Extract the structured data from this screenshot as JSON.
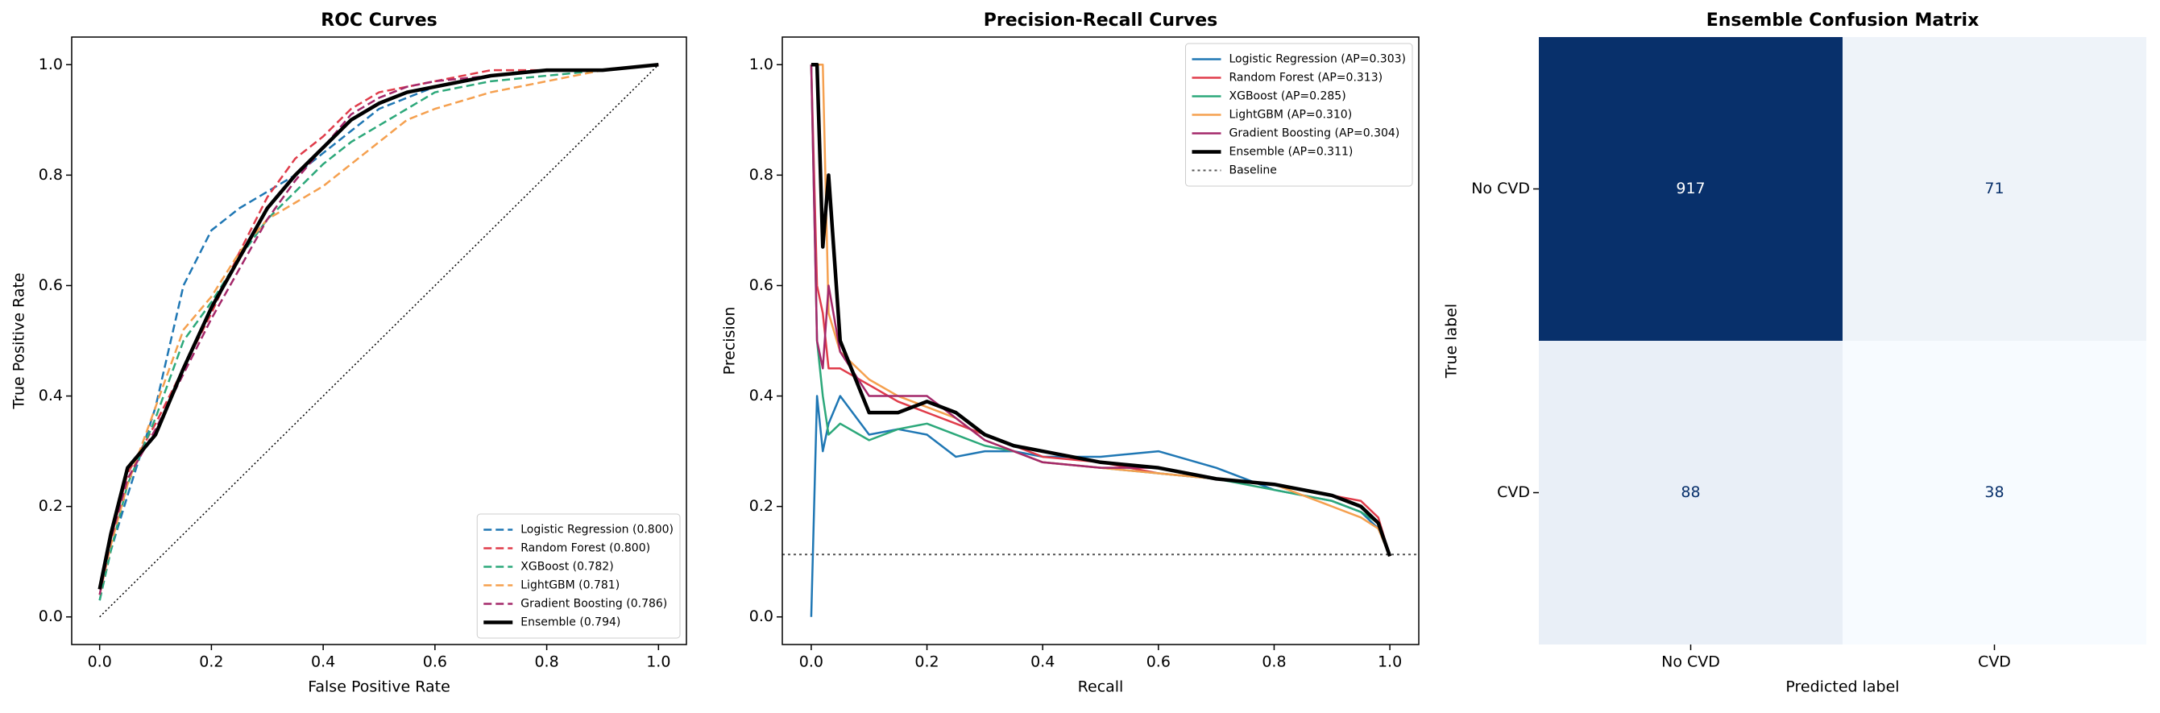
{
  "chart_data": [
    {
      "type": "line",
      "title": "ROC Curves",
      "xlabel": "False Positive Rate",
      "ylabel": "True Positive Rate",
      "x": [
        0,
        0.02,
        0.05,
        0.1,
        0.15,
        0.2,
        0.25,
        0.3,
        0.35,
        0.4,
        0.45,
        0.5,
        0.55,
        0.6,
        0.7,
        0.8,
        0.9,
        1.0
      ],
      "series": [
        {
          "name": "Logistic Regression (0.800)",
          "color": "#1f77b4",
          "linestyle": "dashed",
          "linewidth": 2.5,
          "values": [
            0.03,
            0.12,
            0.22,
            0.38,
            0.6,
            0.7,
            0.74,
            0.77,
            0.8,
            0.84,
            0.88,
            0.92,
            0.94,
            0.96,
            0.98,
            0.99,
            0.99,
            1.0
          ]
        },
        {
          "name": "Random Forest (0.800)",
          "color": "#e03c4a",
          "linestyle": "dashed",
          "linewidth": 2.5,
          "values": [
            0.05,
            0.14,
            0.26,
            0.35,
            0.45,
            0.55,
            0.66,
            0.76,
            0.83,
            0.87,
            0.92,
            0.95,
            0.96,
            0.97,
            0.99,
            0.99,
            0.99,
            1.0
          ]
        },
        {
          "name": "XGBoost (0.782)",
          "color": "#2ca87a",
          "linestyle": "dashed",
          "linewidth": 2.5,
          "values": [
            0.03,
            0.12,
            0.24,
            0.36,
            0.5,
            0.57,
            0.65,
            0.72,
            0.77,
            0.82,
            0.86,
            0.89,
            0.92,
            0.95,
            0.97,
            0.98,
            0.99,
            1.0
          ]
        },
        {
          "name": "LightGBM (0.781)",
          "color": "#f5a04f",
          "linestyle": "dashed",
          "linewidth": 2.5,
          "values": [
            0.04,
            0.13,
            0.24,
            0.38,
            0.52,
            0.58,
            0.66,
            0.72,
            0.75,
            0.78,
            0.82,
            0.86,
            0.9,
            0.92,
            0.95,
            0.97,
            0.99,
            1.0
          ]
        },
        {
          "name": "Gradient Boosting (0.786)",
          "color": "#a4286a",
          "linestyle": "dashed",
          "linewidth": 2.5,
          "values": [
            0.04,
            0.14,
            0.25,
            0.34,
            0.44,
            0.54,
            0.63,
            0.72,
            0.79,
            0.85,
            0.91,
            0.94,
            0.96,
            0.97,
            0.98,
            0.99,
            0.99,
            1.0
          ]
        },
        {
          "name": "Ensemble (0.794)",
          "color": "#000000",
          "linestyle": "solid",
          "linewidth": 4.5,
          "values": [
            0.05,
            0.15,
            0.27,
            0.33,
            0.45,
            0.56,
            0.65,
            0.74,
            0.8,
            0.85,
            0.9,
            0.93,
            0.95,
            0.96,
            0.98,
            0.99,
            0.99,
            1.0
          ]
        }
      ],
      "diagonal": {
        "x": [
          0,
          1
        ],
        "y": [
          0,
          1
        ],
        "color": "#000000"
      },
      "xlim": [
        -0.05,
        1.05
      ],
      "ylim": [
        -0.05,
        1.05
      ],
      "xticks": [
        {
          "value": 0,
          "label": "0.0"
        },
        {
          "value": 0.2,
          "label": "0.2"
        },
        {
          "value": 0.4,
          "label": "0.4"
        },
        {
          "value": 0.6,
          "label": "0.6"
        },
        {
          "value": 0.8,
          "label": "0.8"
        },
        {
          "value": 1,
          "label": "1.0"
        }
      ],
      "yticks": [
        {
          "value": 0,
          "label": "0.0"
        },
        {
          "value": 0.2,
          "label": "0.2"
        },
        {
          "value": 0.4,
          "label": "0.4"
        },
        {
          "value": 0.6,
          "label": "0.6"
        },
        {
          "value": 0.8,
          "label": "0.8"
        },
        {
          "value": 1,
          "label": "1.0"
        }
      ],
      "legend": "lower right"
    },
    {
      "type": "line",
      "title": "Precision-Recall Curves",
      "xlabel": "Recall",
      "ylabel": "Precision",
      "x": [
        0,
        0.01,
        0.02,
        0.03,
        0.05,
        0.1,
        0.15,
        0.2,
        0.25,
        0.3,
        0.35,
        0.4,
        0.5,
        0.6,
        0.7,
        0.8,
        0.9,
        0.95,
        0.98,
        1.0
      ],
      "series": [
        {
          "name": "Logistic Regression (AP=0.303)",
          "color": "#1f77b4",
          "linestyle": "solid",
          "linewidth": 2.5,
          "values": [
            0,
            0.4,
            0.3,
            0.35,
            0.4,
            0.33,
            0.34,
            0.33,
            0.29,
            0.3,
            0.3,
            0.29,
            0.29,
            0.3,
            0.27,
            0.23,
            0.21,
            0.19,
            0.16,
            0.11
          ]
        },
        {
          "name": "Random Forest (AP=0.313)",
          "color": "#e03c4a",
          "linestyle": "solid",
          "linewidth": 2.5,
          "values": [
            1,
            0.6,
            0.55,
            0.45,
            0.45,
            0.42,
            0.39,
            0.37,
            0.35,
            0.33,
            0.31,
            0.29,
            0.28,
            0.26,
            0.25,
            0.24,
            0.22,
            0.21,
            0.18,
            0.11
          ]
        },
        {
          "name": "XGBoost (AP=0.285)",
          "color": "#2ca87a",
          "linestyle": "solid",
          "linewidth": 2.5,
          "values": [
            1,
            0.5,
            0.4,
            0.33,
            0.35,
            0.32,
            0.34,
            0.35,
            0.33,
            0.31,
            0.3,
            0.28,
            0.27,
            0.26,
            0.25,
            0.23,
            0.21,
            0.19,
            0.17,
            0.11
          ]
        },
        {
          "name": "LightGBM (AP=0.310)",
          "color": "#f5a04f",
          "linestyle": "solid",
          "linewidth": 2.5,
          "values": [
            1,
            1,
            1,
            0.55,
            0.48,
            0.43,
            0.4,
            0.38,
            0.36,
            0.32,
            0.3,
            0.28,
            0.27,
            0.26,
            0.25,
            0.24,
            0.2,
            0.18,
            0.16,
            0.11
          ]
        },
        {
          "name": "Gradient Boosting (AP=0.304)",
          "color": "#a4286a",
          "linestyle": "solid",
          "linewidth": 2.5,
          "values": [
            1,
            0.5,
            0.45,
            0.6,
            0.48,
            0.4,
            0.4,
            0.4,
            0.36,
            0.32,
            0.3,
            0.28,
            0.27,
            0.27,
            0.25,
            0.24,
            0.22,
            0.2,
            0.17,
            0.11
          ]
        },
        {
          "name": "Ensemble (AP=0.311)",
          "color": "#000000",
          "linestyle": "solid",
          "linewidth": 4.5,
          "values": [
            1,
            1,
            0.67,
            0.8,
            0.5,
            0.37,
            0.37,
            0.39,
            0.37,
            0.33,
            0.31,
            0.3,
            0.28,
            0.27,
            0.25,
            0.24,
            0.22,
            0.2,
            0.17,
            0.11
          ]
        }
      ],
      "baseline": {
        "name": "Baseline",
        "value": 0.113,
        "color": "#555555"
      },
      "xlim": [
        -0.05,
        1.05
      ],
      "ylim": [
        -0.05,
        1.05
      ],
      "xticks": [
        {
          "value": 0,
          "label": "0.0"
        },
        {
          "value": 0.2,
          "label": "0.2"
        },
        {
          "value": 0.4,
          "label": "0.4"
        },
        {
          "value": 0.6,
          "label": "0.6"
        },
        {
          "value": 0.8,
          "label": "0.8"
        },
        {
          "value": 1,
          "label": "1.0"
        }
      ],
      "yticks": [
        {
          "value": 0,
          "label": "0.0"
        },
        {
          "value": 0.2,
          "label": "0.2"
        },
        {
          "value": 0.4,
          "label": "0.4"
        },
        {
          "value": 0.6,
          "label": "0.6"
        },
        {
          "value": 0.8,
          "label": "0.8"
        },
        {
          "value": 1,
          "label": "1.0"
        }
      ],
      "legend": "upper right"
    },
    {
      "type": "heatmap",
      "title": "Ensemble Confusion Matrix",
      "xlabel": "Predicted label",
      "ylabel": "True label",
      "x_categories": [
        "No CVD",
        "CVD"
      ],
      "y_categories": [
        "No CVD",
        "CVD"
      ],
      "values": [
        [
          917,
          71
        ],
        [
          88,
          38
        ]
      ],
      "colormap": [
        "#f7fbff",
        "#08306b"
      ]
    }
  ]
}
